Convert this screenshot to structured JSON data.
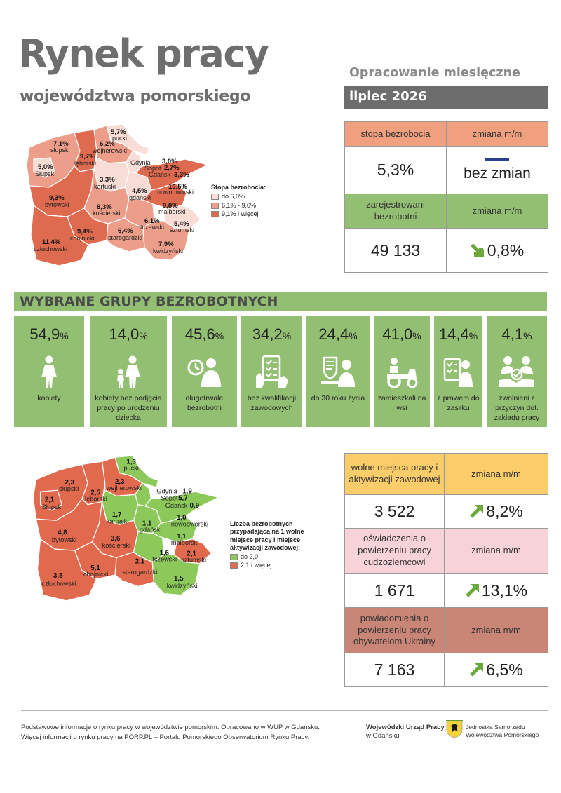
{
  "header": {
    "title": "Rynek pracy",
    "subtitle": "województwa pomorskiego",
    "report_type": "Opracowanie miesięczne",
    "period": "lipiec 2026"
  },
  "unemployment": {
    "rate_label": "stopa bezrobocia",
    "change_label": "zmiana m/m",
    "rate_value": "5,3%",
    "rate_change": "bez zmian",
    "registered_label": "zarejestrowani bezrobotni",
    "registered_change_label": "zmiana m/m",
    "registered_value": "49 133",
    "registered_change": "0,8%",
    "registered_trend": "down"
  },
  "map1": {
    "legend_title": "Stopa bezrobocia:",
    "legend": [
      "do 6,0%",
      "6,1% - 9,0%",
      "9,1% i więcej"
    ],
    "colors": {
      "low": "#f8dcd6",
      "mid": "#ec9e8a",
      "high": "#de6b4f"
    },
    "regions": [
      {
        "name": "pucki",
        "value": "5,7%",
        "cls": "low"
      },
      {
        "name": "słupski",
        "value": "7,1%",
        "cls": "mid"
      },
      {
        "name": "Słupsk",
        "value": "5,0%",
        "cls": "low"
      },
      {
        "name": "lęborski",
        "value": "9,7%",
        "cls": "high"
      },
      {
        "name": "wejherowski",
        "value": "6,2%",
        "cls": "mid"
      },
      {
        "name": "Gdynia",
        "value": "3,0%",
        "cls": "low"
      },
      {
        "name": "Sopot",
        "value": "2,7%",
        "cls": "low"
      },
      {
        "name": "Gdańsk",
        "value": "3,3%",
        "cls": "low"
      },
      {
        "name": "kartuski",
        "value": "3,3%",
        "cls": "low"
      },
      {
        "name": "gdański",
        "value": "4,5%",
        "cls": "low"
      },
      {
        "name": "nowodworski",
        "value": "10,5%",
        "cls": "high"
      },
      {
        "name": "bytowski",
        "value": "9,3%",
        "cls": "high"
      },
      {
        "name": "kościerski",
        "value": "8,3%",
        "cls": "mid"
      },
      {
        "name": "malborski",
        "value": "9,8%",
        "cls": "high"
      },
      {
        "name": "tczewski",
        "value": "6,1%",
        "cls": "mid"
      },
      {
        "name": "sztumski",
        "value": "5,4%",
        "cls": "low"
      },
      {
        "name": "chojnicki",
        "value": "9,4%",
        "cls": "high"
      },
      {
        "name": "starogardzki",
        "value": "6,4%",
        "cls": "mid"
      },
      {
        "name": "człuchowski",
        "value": "11,4%",
        "cls": "high"
      },
      {
        "name": "kwidzyński",
        "value": "7,9%",
        "cls": "mid"
      }
    ]
  },
  "groups": {
    "title": "WYBRANE GRUPY BEZROBOTNYCH",
    "items": [
      {
        "value": "54,9",
        "unit": "%",
        "label": "kobiety",
        "icon": "woman-icon"
      },
      {
        "value": "14,0",
        "unit": "%",
        "label": "kobiety bez podjęcia pracy po urodzeniu dziecka",
        "icon": "mother-child-icon"
      },
      {
        "value": "45,6",
        "unit": "%",
        "label": "długotrwale bezrobotni",
        "icon": "clock-person-icon"
      },
      {
        "value": "34,2",
        "unit": "%",
        "label": "bez kwalifikacji zawodowych",
        "icon": "checklist-hand-icon"
      },
      {
        "value": "24,4",
        "unit": "%",
        "label": "do 30 roku życia",
        "icon": "young-person-computer-icon"
      },
      {
        "value": "41,0",
        "unit": "%",
        "label": "zamieszkali na wsi",
        "icon": "tractor-icon"
      },
      {
        "value": "14,4",
        "unit": "%",
        "label": "z prawem do zasiłku",
        "icon": "benefit-document-icon"
      },
      {
        "value": "4,1",
        "unit": "%",
        "label": "zwolnieni z przyczyn dot. zakładu pracy",
        "icon": "dismissal-handshake-icon"
      }
    ]
  },
  "map2": {
    "legend_title": "Liczba bezrobotnych przypadająca na 1 wolne miejsce pracy i miejsce aktywizacji zawodowej:",
    "legend": [
      "do 2,0",
      "2,1 i więcej"
    ],
    "colors": {
      "low": "#8cc95a",
      "high": "#e0694e"
    },
    "regions": [
      {
        "name": "pucki",
        "value": "1,3",
        "cls": "low"
      },
      {
        "name": "słupski",
        "value": "2,3",
        "cls": "high"
      },
      {
        "name": "Słupsk",
        "value": "2,1",
        "cls": "high"
      },
      {
        "name": "lęborski",
        "value": "2,5",
        "cls": "high"
      },
      {
        "name": "wejherowski",
        "value": "2,3",
        "cls": "high"
      },
      {
        "name": "Gdynia",
        "value": "1,9",
        "cls": "low"
      },
      {
        "name": "Sopot",
        "value": "5,7",
        "cls": "high"
      },
      {
        "name": "Gdańsk",
        "value": "0,9",
        "cls": "low"
      },
      {
        "name": "kartuski",
        "value": "1,7",
        "cls": "low"
      },
      {
        "name": "gdański",
        "value": "1,1",
        "cls": "low"
      },
      {
        "name": "nowodworski",
        "value": "1,0",
        "cls": "low"
      },
      {
        "name": "bytowski",
        "value": "4,8",
        "cls": "high"
      },
      {
        "name": "kościerski",
        "value": "3,6",
        "cls": "high"
      },
      {
        "name": "malborski",
        "value": "1,1",
        "cls": "low"
      },
      {
        "name": "tczewski",
        "value": "1,6",
        "cls": "low"
      },
      {
        "name": "sztumski",
        "value": "2,1",
        "cls": "high"
      },
      {
        "name": "chojnicki",
        "value": "5,1",
        "cls": "high"
      },
      {
        "name": "starogardzki",
        "value": "2,1",
        "cls": "high"
      },
      {
        "name": "człuchowski",
        "value": "3,5",
        "cls": "high"
      },
      {
        "name": "kwidzyński",
        "value": "1,5",
        "cls": "low"
      }
    ]
  },
  "offers": {
    "vacancies_label": "wolne miejsca pracy i aktywizacji zawodowej",
    "vacancies_change_label": "zmiana m/m",
    "vacancies_value": "3 522",
    "vacancies_change": "8,2%",
    "declarations_label": "oświadczenia o powierzeniu pracy cudzoziemcowi",
    "declarations_change_label": "zmiana m/m",
    "declarations_value": "1 671",
    "declarations_change": "13,1%",
    "notifications_label": "powiadomienia o powierzeniu pracy obywatelom Ukrainy",
    "notifications_change_label": "zmiana m/m",
    "notifications_value": "7 163",
    "notifications_change": "6,5%"
  },
  "footer": {
    "line1": "Podstawowe informacje o rynku pracy w województwie pomorskim. Opracowano w WUP w Gdańsku.",
    "line2": "Więcej informacji o rynku pracy na PORP.PL – Portalu Pomorskiego Obserwatorium Rynku Pracy.",
    "logo1_name": "Wojewódzki Urząd Pracy",
    "logo1_sub": "w Gdańsku",
    "logo2_line1": "Jednostka Samorządu",
    "logo2_line2": "Województwa Pomorskiego"
  },
  "colors": {
    "accent_green": "#93bf72",
    "accent_orange": "#f0a07e",
    "arrow_green": "#6aa83b"
  }
}
